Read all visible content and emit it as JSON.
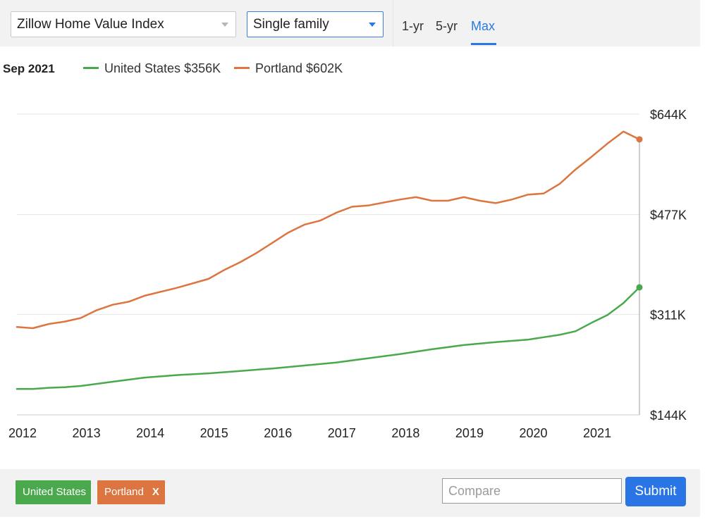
{
  "controls": {
    "index_select": "Zillow Home Value Index",
    "type_select": "Single family",
    "ranges": [
      "1-yr",
      "5-yr",
      "Max"
    ],
    "active_range": "Max"
  },
  "legend": {
    "date": "Sep 2021",
    "items": [
      {
        "label": "United States $356K",
        "color": "#4aa84d"
      },
      {
        "label": "Portland $602K",
        "color": "#dd7540"
      }
    ]
  },
  "colors": {
    "accent": "#2b78e4",
    "us": "#4aa84d",
    "portland": "#dd7540"
  },
  "chart_data": {
    "type": "line",
    "title": "Zillow Home Value Index — Single family",
    "xlabel": "",
    "ylabel": "",
    "xlim": [
      2012.0,
      2021.75
    ],
    "ylim": [
      144,
      644
    ],
    "y_ticks": [
      144,
      311,
      477,
      644
    ],
    "y_tick_labels": [
      "$144K",
      "$311K",
      "$477K",
      "$644K"
    ],
    "x_ticks": [
      2012,
      2013,
      2014,
      2015,
      2016,
      2017,
      2018,
      2019,
      2020,
      2021
    ],
    "x_tick_labels": [
      "2012",
      "2013",
      "2014",
      "2015",
      "2016",
      "2017",
      "2018",
      "2019",
      "2020",
      "2021"
    ],
    "grid": true,
    "series": [
      {
        "name": "United States",
        "color": "#4aa84d",
        "x": [
          2012.0,
          2012.25,
          2012.5,
          2012.75,
          2013.0,
          2013.5,
          2014.0,
          2014.5,
          2015.0,
          2015.5,
          2016.0,
          2016.5,
          2017.0,
          2017.5,
          2018.0,
          2018.5,
          2019.0,
          2019.5,
          2020.0,
          2020.25,
          2020.5,
          2020.75,
          2021.0,
          2021.25,
          2021.5,
          2021.75
        ],
        "values": [
          187,
          187,
          189,
          190,
          192,
          199,
          206,
          210,
          213,
          217,
          221,
          226,
          231,
          238,
          245,
          253,
          260,
          265,
          269,
          273,
          277,
          283,
          297,
          310,
          330,
          356
        ]
      },
      {
        "name": "Portland",
        "color": "#dd7540",
        "x": [
          2012.0,
          2012.25,
          2012.5,
          2012.75,
          2013.0,
          2013.25,
          2013.5,
          2013.75,
          2014.0,
          2014.5,
          2015.0,
          2015.25,
          2015.5,
          2015.75,
          2016.0,
          2016.25,
          2016.5,
          2016.75,
          2017.0,
          2017.25,
          2017.5,
          2017.75,
          2018.0,
          2018.25,
          2018.5,
          2018.75,
          2019.0,
          2019.25,
          2019.5,
          2019.75,
          2020.0,
          2020.25,
          2020.5,
          2020.75,
          2021.0,
          2021.25,
          2021.5,
          2021.75
        ],
        "values": [
          290,
          288,
          295,
          299,
          305,
          318,
          327,
          332,
          342,
          355,
          370,
          385,
          398,
          413,
          430,
          447,
          460,
          467,
          480,
          490,
          492,
          497,
          502,
          506,
          500,
          500,
          506,
          500,
          496,
          502,
          510,
          512,
          528,
          552,
          573,
          595,
          615,
          602
        ]
      }
    ],
    "end_markers": [
      {
        "series": "United States",
        "x": 2021.75,
        "value": 356
      },
      {
        "series": "Portland",
        "x": 2021.75,
        "value": 602
      }
    ]
  },
  "compare": {
    "tags": [
      "United States",
      "Portland"
    ],
    "remove_label": "X",
    "placeholder": "Compare",
    "value": "",
    "submit_label": "Submit"
  }
}
